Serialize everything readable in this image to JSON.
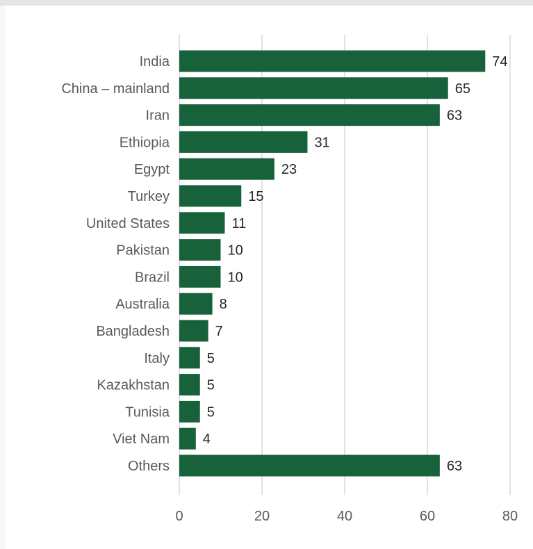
{
  "chart_data": {
    "type": "bar",
    "orientation": "horizontal",
    "categories": [
      "India",
      "China – mainland",
      "Iran",
      "Ethiopia",
      "Egypt",
      "Turkey",
      "United States",
      "Pakistan",
      "Brazil",
      "Australia",
      "Bangladesh",
      "Italy",
      "Kazakhstan",
      "Tunisia",
      "Viet Nam",
      "Others"
    ],
    "values": [
      74,
      65,
      63,
      31,
      23,
      15,
      11,
      10,
      10,
      8,
      7,
      5,
      5,
      5,
      4,
      63
    ],
    "x_ticks": [
      "0",
      "20",
      "40",
      "60",
      "80"
    ],
    "xlim": [
      0,
      80
    ],
    "grid": "vertical",
    "bar_color": "#17623b",
    "gridline_color": "#d9d9d9"
  }
}
